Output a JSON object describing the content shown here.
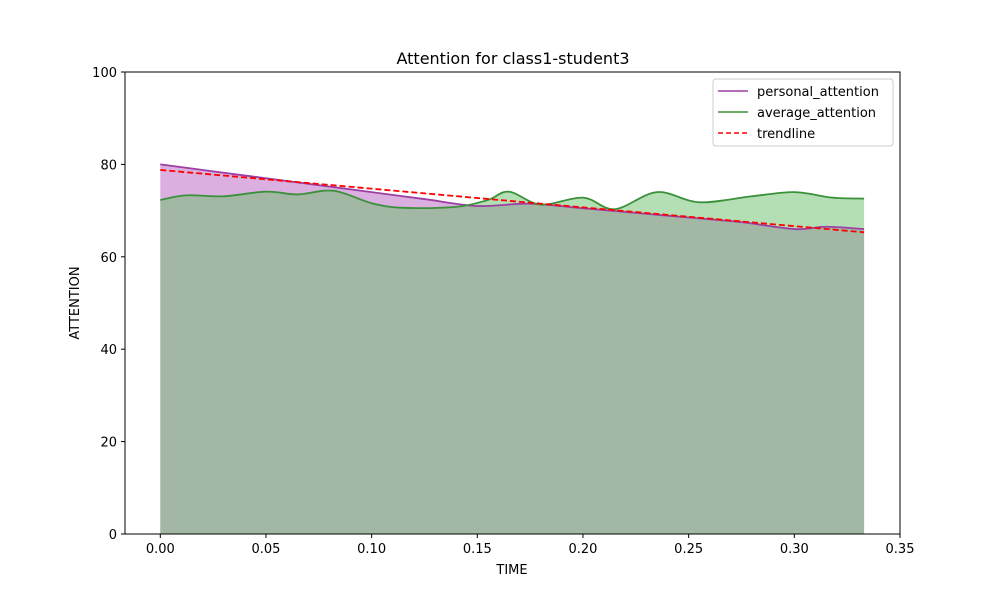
{
  "chart_data": {
    "type": "area",
    "title": "Attention for class1-student3",
    "xlabel": "TIME",
    "ylabel": "ATTENTION",
    "xlim": [
      -0.0167,
      0.35
    ],
    "ylim": [
      0,
      100
    ],
    "xticks": [
      0.0,
      0.05,
      0.1,
      0.15,
      0.2,
      0.25,
      0.3,
      0.35
    ],
    "xtick_labels": [
      "0.00",
      "0.05",
      "0.10",
      "0.15",
      "0.20",
      "0.25",
      "0.30",
      "0.35"
    ],
    "yticks": [
      0,
      20,
      40,
      60,
      80,
      100
    ],
    "ytick_labels": [
      "0",
      "20",
      "40",
      "60",
      "80",
      "100"
    ],
    "grid": false,
    "legend_position": "top-right",
    "series": [
      {
        "name": "personal_attention",
        "style": "line+fill",
        "color": "#9b3fa3",
        "fill_color": "#b85fbf",
        "x": [
          0.0,
          0.025,
          0.05,
          0.075,
          0.1,
          0.125,
          0.15,
          0.175,
          0.2,
          0.225,
          0.25,
          0.275,
          0.3,
          0.315,
          0.333
        ],
        "y": [
          80.0,
          78.5,
          77.0,
          75.5,
          74.0,
          72.5,
          71.0,
          71.5,
          70.5,
          69.5,
          68.5,
          67.5,
          66.0,
          66.5,
          66.0
        ]
      },
      {
        "name": "average_attention",
        "style": "line+fill",
        "color": "#3a913a",
        "fill_color": "#6abf6a",
        "x": [
          0.0,
          0.012,
          0.03,
          0.05,
          0.065,
          0.082,
          0.1,
          0.115,
          0.14,
          0.155,
          0.165,
          0.18,
          0.2,
          0.215,
          0.235,
          0.255,
          0.28,
          0.3,
          0.318,
          0.333
        ],
        "y": [
          72.3,
          73.3,
          73.1,
          74.1,
          73.5,
          74.3,
          71.6,
          70.6,
          70.8,
          72.3,
          74.1,
          71.3,
          72.8,
          70.3,
          74.0,
          71.8,
          73.1,
          74.0,
          72.8,
          72.6
        ]
      },
      {
        "name": "trendline",
        "style": "dashed",
        "color": "#ff0000",
        "x": [
          0.0,
          0.333
        ],
        "y": [
          78.8,
          65.3
        ]
      }
    ]
  }
}
